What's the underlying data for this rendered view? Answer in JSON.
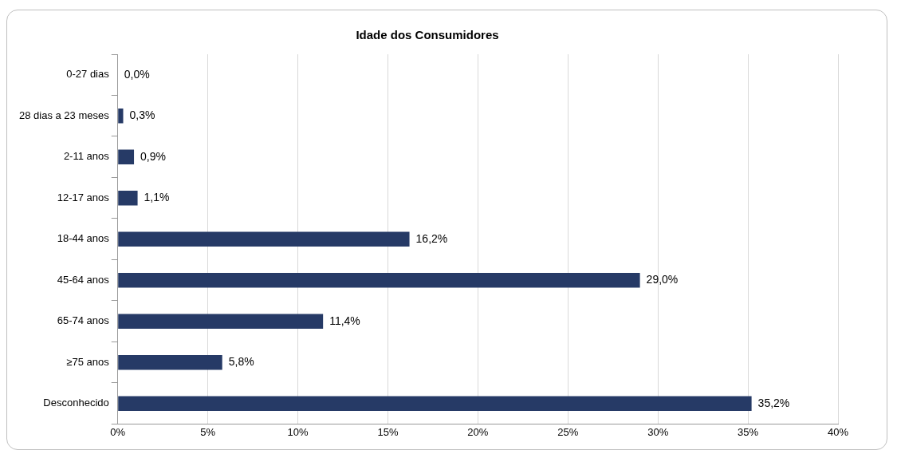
{
  "chart_data": {
    "type": "bar",
    "orientation": "horizontal",
    "title": "Idade dos Consumidores",
    "categories": [
      "0-27 dias",
      "28 dias a 23 meses",
      "2-11 anos",
      "12-17 anos",
      "18-44 anos",
      "45-64 anos",
      "65-74 anos",
      "≥75 anos",
      "Desconhecido"
    ],
    "values": [
      0.0,
      0.3,
      0.9,
      1.1,
      16.2,
      29.0,
      11.4,
      5.8,
      35.2
    ],
    "value_labels": [
      "0,0%",
      "0,3%",
      "0,9%",
      "1,1%",
      "16,2%",
      "29,0%",
      "11,4%",
      "5,8%",
      "35,2%"
    ],
    "color": "#263a66",
    "xlim": [
      0,
      40
    ],
    "xticks": [
      {
        "value": 0,
        "label": "0%"
      },
      {
        "value": 5,
        "label": "5%"
      },
      {
        "value": 10,
        "label": "10%"
      },
      {
        "value": 15,
        "label": "15%"
      },
      {
        "value": 20,
        "label": "20%"
      },
      {
        "value": 25,
        "label": "25%"
      },
      {
        "value": 30,
        "label": "30%"
      },
      {
        "value": 35,
        "label": "35%"
      },
      {
        "value": 40,
        "label": "40%"
      }
    ],
    "grid": "x",
    "legend": false
  }
}
